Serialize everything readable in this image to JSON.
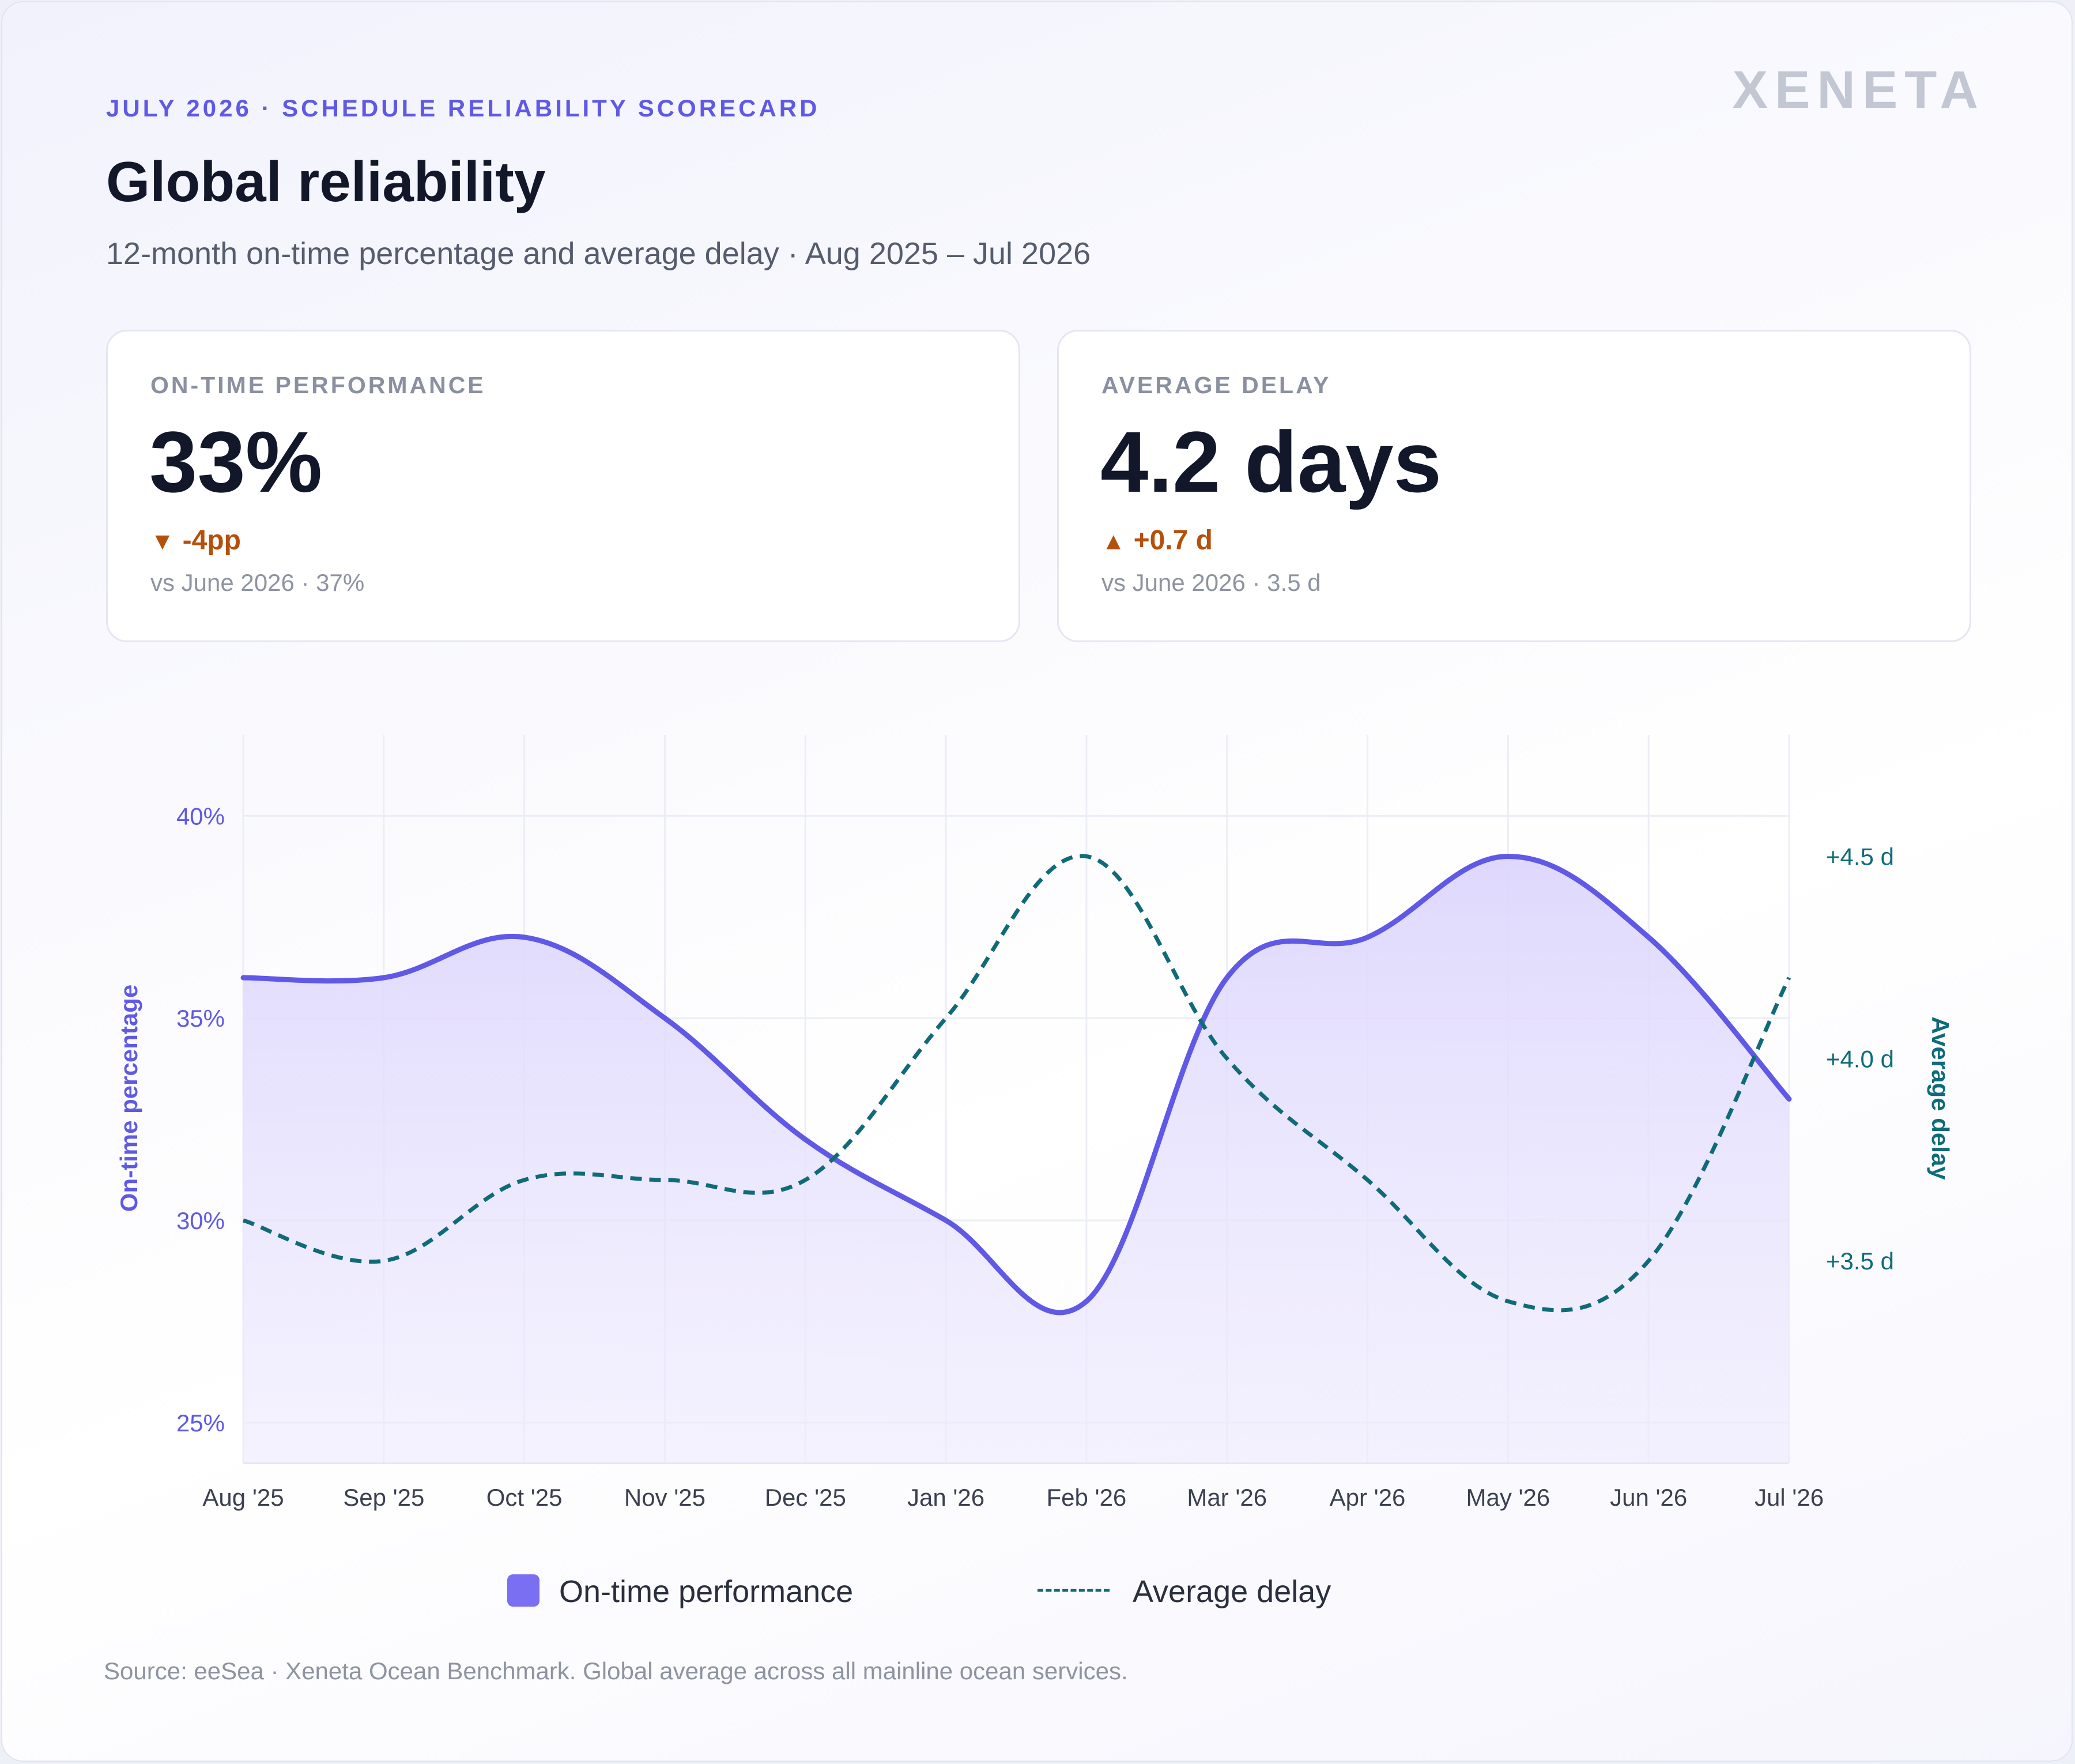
{
  "header": {
    "eyebrow": "JULY 2026 · SCHEDULE RELIABILITY SCORECARD",
    "logo": "XENETA",
    "title": "Global reliability",
    "subtitle": "12-month on-time percentage and average delay · Aug 2025 – Jul 2026"
  },
  "kpis": {
    "on_time": {
      "label": "ON-TIME PERFORMANCE",
      "value": "33%",
      "delta_icon": "triangle-down-icon",
      "delta_glyph": "▼",
      "delta": "-4pp",
      "compare": "vs June 2026 · 37%"
    },
    "delay": {
      "label": "AVERAGE DELAY",
      "value": "4.2 days",
      "delta_icon": "triangle-up-icon",
      "delta_glyph": "▲",
      "delta": "+0.7 d",
      "compare": "vs June 2026 · 3.5 d"
    }
  },
  "colors": {
    "primary": "#5f59e6",
    "area_fill": "#e4dffd",
    "delay_line": "#0f6b78",
    "negative_delta": "#b4500c"
  },
  "legend": {
    "on_time": "On-time performance",
    "delay": "Average delay"
  },
  "source": "Source: eeSea · Xeneta Ocean Benchmark. Global average across all mainline ocean services.",
  "chart_data": {
    "type": "line",
    "categories": [
      "Aug '25",
      "Sep '25",
      "Oct '25",
      "Nov '25",
      "Dec '25",
      "Jan '26",
      "Feb '26",
      "Mar '26",
      "Apr '26",
      "May '26",
      "Jun '26",
      "Jul '26"
    ],
    "series": [
      {
        "name": "On-time performance",
        "axis": "left",
        "style": "solid line with area fill",
        "values": [
          36,
          36,
          37,
          35,
          32,
          30,
          28,
          36,
          37,
          39,
          37,
          33
        ]
      },
      {
        "name": "Average delay",
        "axis": "right",
        "style": "dashed line",
        "values": [
          3.6,
          3.5,
          3.7,
          3.7,
          3.7,
          4.1,
          4.5,
          4.0,
          3.7,
          3.4,
          3.5,
          4.2
        ]
      }
    ],
    "ylabel": "On-time percentage",
    "y2label": "Average delay",
    "ylim": [
      24,
      42
    ],
    "y2lim": [
      3.0,
      4.8
    ],
    "yticks": [
      25,
      30,
      35,
      40
    ],
    "ytick_labels": [
      "25%",
      "30%",
      "35%",
      "40%"
    ],
    "y2ticks": [
      3.5,
      4.0,
      4.5
    ],
    "y2tick_labels": [
      "+3.5 d",
      "+4.0 d",
      "+4.5 d"
    ],
    "grid": true,
    "legend_position": "bottom-center"
  }
}
